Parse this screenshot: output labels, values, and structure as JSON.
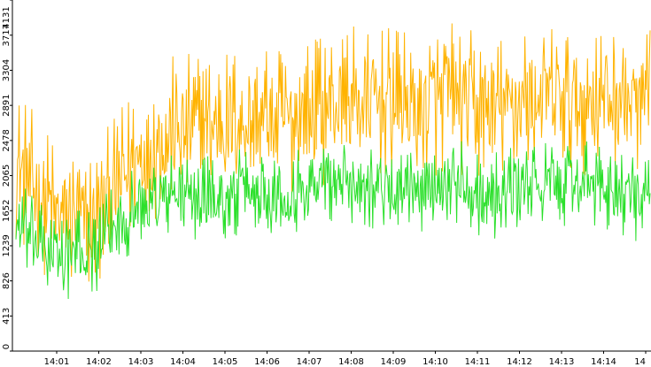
{
  "chart_data": {
    "type": "line",
    "title": "",
    "xlabel": "",
    "ylabel": "",
    "ylim": [
      0,
      4131
    ],
    "yticks": [
      0,
      413,
      826,
      1239,
      1652,
      2065,
      2478,
      2891,
      3304,
      3717,
      4131
    ],
    "xticks": [
      "14:01",
      "14:02",
      "14:03",
      "14:04",
      "14:05",
      "14:06",
      "14:07",
      "14:08",
      "14:09",
      "14:10",
      "14:11",
      "14:12",
      "14:13",
      "14:14",
      "14"
    ],
    "grid": false,
    "legend": "none",
    "background": "#ffffff",
    "series": [
      {
        "color": "#ffb300",
        "points_per_minute": 50,
        "minute_levels": [
          2200,
          1600,
          1500,
          2250,
          2600,
          2650,
          2750,
          2700,
          2900,
          2950,
          2850,
          3000,
          2800,
          3000,
          2950,
          3000,
          2900
        ]
      },
      {
        "color": "#2be02b",
        "points_per_minute": 50,
        "minute_levels": [
          1500,
          1100,
          1200,
          1700,
          1850,
          1800,
          1900,
          1850,
          2050,
          1950,
          1850,
          2050,
          1800,
          1950,
          2000,
          1900,
          1750
        ]
      }
    ]
  }
}
